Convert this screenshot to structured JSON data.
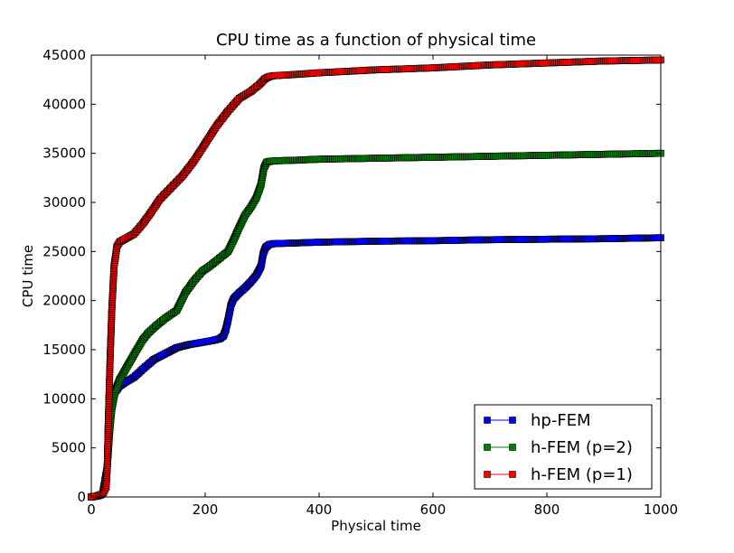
{
  "chart_data": {
    "type": "line",
    "title": "CPU time as a function of physical time",
    "xlabel": "Physical time",
    "ylabel": "CPU time",
    "xlim": [
      0,
      1000
    ],
    "ylim": [
      0,
      45000
    ],
    "xticks": [
      0,
      200,
      400,
      600,
      800,
      1000
    ],
    "yticks": [
      0,
      5000,
      10000,
      15000,
      20000,
      25000,
      30000,
      35000,
      40000,
      45000
    ],
    "grid": false,
    "legend_position": "lower-right",
    "series": [
      {
        "name": "hp-FEM",
        "color": "#0000ff",
        "marker": "square",
        "x": [
          0,
          10,
          20,
          28,
          32,
          36,
          42,
          50,
          60,
          75,
          90,
          110,
          130,
          150,
          170,
          190,
          210,
          225,
          232,
          236,
          240,
          245,
          250,
          260,
          270,
          280,
          290,
          298,
          302,
          306,
          312,
          320,
          350,
          400,
          500,
          600,
          700,
          800,
          900,
          1000
        ],
        "y": [
          0,
          100,
          300,
          3000,
          8000,
          9800,
          10700,
          11300,
          11700,
          12200,
          13000,
          14000,
          14600,
          15200,
          15500,
          15700,
          15900,
          16100,
          16400,
          17000,
          18000,
          19500,
          20200,
          20800,
          21300,
          21900,
          22600,
          23500,
          24800,
          25400,
          25700,
          25800,
          25850,
          25950,
          26050,
          26100,
          26200,
          26250,
          26300,
          26400
        ]
      },
      {
        "name": "h-FEM (p=2)",
        "color": "#008000",
        "marker": "square",
        "x": [
          0,
          10,
          20,
          28,
          32,
          36,
          42,
          50,
          60,
          70,
          80,
          90,
          100,
          115,
          130,
          150,
          165,
          180,
          195,
          210,
          225,
          240,
          250,
          260,
          270,
          280,
          290,
          298,
          303,
          308,
          315,
          330,
          360,
          400,
          500,
          600,
          700,
          800,
          900,
          1000
        ],
        "y": [
          0,
          100,
          300,
          3000,
          6500,
          9000,
          10800,
          12000,
          13000,
          14000,
          15000,
          16000,
          16700,
          17500,
          18200,
          19000,
          20800,
          22000,
          23000,
          23600,
          24300,
          25000,
          26200,
          27500,
          28700,
          29500,
          30500,
          31800,
          33500,
          34100,
          34200,
          34250,
          34300,
          34400,
          34500,
          34600,
          34700,
          34800,
          34900,
          35000
        ]
      },
      {
        "name": "h-FEM (p=1)",
        "color": "#ff0000",
        "marker": "square",
        "x": [
          0,
          10,
          20,
          26,
          28,
          30,
          33,
          36,
          40,
          45,
          50,
          60,
          75,
          90,
          105,
          120,
          140,
          160,
          180,
          200,
          220,
          240,
          260,
          280,
          295,
          305,
          312,
          320,
          350,
          400,
          500,
          600,
          700,
          800,
          900,
          1000
        ],
        "y": [
          0,
          100,
          300,
          1000,
          3000,
          8000,
          14000,
          19000,
          23500,
          25500,
          26000,
          26300,
          26800,
          27800,
          29000,
          30300,
          31500,
          32700,
          34200,
          36000,
          37800,
          39300,
          40600,
          41300,
          42000,
          42600,
          42800,
          42900,
          43000,
          43200,
          43500,
          43700,
          44000,
          44200,
          44400,
          44500
        ]
      }
    ]
  }
}
